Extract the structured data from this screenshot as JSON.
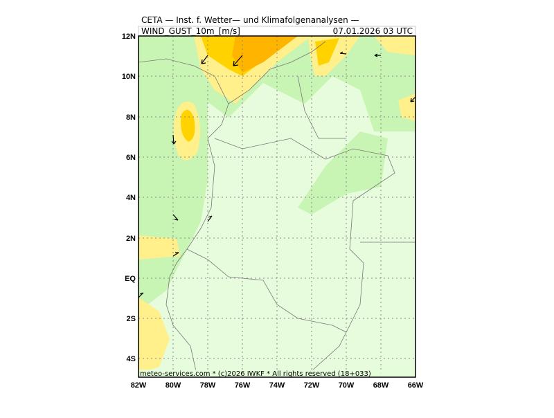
{
  "header": {
    "title": "CETA — Inst. f. Wetter— und Klimafolgenanalysen —",
    "field": "WIND_GUST_10m_[m/s]",
    "valid": "07.01.2026  03 UTC"
  },
  "axes": {
    "lon_labels": [
      "82W",
      "80W",
      "78W",
      "76W",
      "74W",
      "72W",
      "70W",
      "68W",
      "66W"
    ],
    "lat_labels": [
      "12N",
      "10N",
      "8N",
      "6N",
      "4N",
      "2N",
      "EQ",
      "2S",
      "4S"
    ]
  },
  "footer": {
    "copyright": "meteo-services.com * (c)2026 IWKF * All rights reserved (18+033)"
  }
}
